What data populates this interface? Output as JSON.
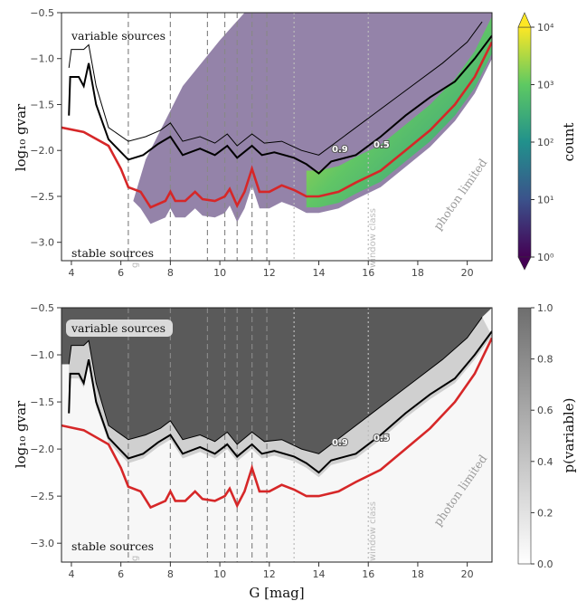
{
  "chart_data": [
    {
      "type": "heatmap",
      "panel": "top",
      "ylabel": "log₁₀ gvar",
      "xlim": [
        3.6,
        21.0
      ],
      "ylim": [
        -3.2,
        -0.5
      ],
      "xticks": [
        4,
        6,
        8,
        10,
        12,
        14,
        16,
        18,
        20
      ],
      "yticks": [
        -3.0,
        -2.5,
        -2.0,
        -1.5,
        -1.0,
        -0.5
      ],
      "colorbar": {
        "label": "count",
        "scale": "log",
        "ticks": [
          "10⁰",
          "10¹",
          "10²",
          "10³",
          "10⁴"
        ],
        "colormap": "viridis"
      },
      "annotations": {
        "variable": "variable sources",
        "stable": "stable sources",
        "photon": "photon limited",
        "window": "window class",
        "g": "g"
      },
      "contour_labels": [
        "0.9",
        "0.5"
      ]
    },
    {
      "type": "heatmap",
      "panel": "bottom",
      "xlabel": "G [mag]",
      "ylabel": "log₁₀ gvar",
      "xlim": [
        3.6,
        21.0
      ],
      "ylim": [
        -3.2,
        -0.5
      ],
      "xticks": [
        4,
        6,
        8,
        10,
        12,
        14,
        16,
        18,
        20
      ],
      "yticks": [
        -3.0,
        -2.5,
        -2.0,
        -1.5,
        -1.0,
        -0.5
      ],
      "colorbar": {
        "label": "p(variable)",
        "scale": "linear",
        "ticks": [
          "0.0",
          "0.2",
          "0.4",
          "0.6",
          "0.8",
          "1.0"
        ],
        "colormap": "greys"
      },
      "annotations": {
        "variable": "variable sources",
        "stable": "stable sources",
        "photon": "photon limited",
        "window": "window class",
        "g": "g"
      },
      "contour_labels": [
        "0.9",
        "0.5"
      ]
    }
  ],
  "vlines": {
    "dashed": [
      6.3,
      8.0,
      9.5,
      10.2,
      10.7,
      11.3,
      11.9
    ],
    "dotted": [
      13.0,
      16.0
    ]
  },
  "curves": {
    "threshold": [
      [
        3.6,
        -1.75
      ],
      [
        4.5,
        -1.8
      ],
      [
        5.5,
        -1.95
      ],
      [
        6.0,
        -2.2
      ],
      [
        6.3,
        -2.4
      ],
      [
        6.8,
        -2.45
      ],
      [
        7.2,
        -2.62
      ],
      [
        7.8,
        -2.55
      ],
      [
        8.0,
        -2.45
      ],
      [
        8.2,
        -2.55
      ],
      [
        8.6,
        -2.55
      ],
      [
        9.0,
        -2.45
      ],
      [
        9.3,
        -2.53
      ],
      [
        9.8,
        -2.55
      ],
      [
        10.2,
        -2.5
      ],
      [
        10.4,
        -2.42
      ],
      [
        10.7,
        -2.6
      ],
      [
        11.0,
        -2.45
      ],
      [
        11.3,
        -2.2
      ],
      [
        11.6,
        -2.45
      ],
      [
        12.0,
        -2.45
      ],
      [
        12.5,
        -2.38
      ],
      [
        13.0,
        -2.43
      ],
      [
        13.5,
        -2.5
      ],
      [
        14.0,
        -2.5
      ],
      [
        14.8,
        -2.45
      ],
      [
        15.5,
        -2.35
      ],
      [
        16.5,
        -2.22
      ],
      [
        17.5,
        -2.0
      ],
      [
        18.5,
        -1.78
      ],
      [
        19.5,
        -1.5
      ],
      [
        20.3,
        -1.2
      ],
      [
        21.0,
        -0.82
      ]
    ],
    "p05": [
      [
        3.9,
        -1.62
      ],
      [
        3.95,
        -1.2
      ],
      [
        4.3,
        -1.2
      ],
      [
        4.5,
        -1.3
      ],
      [
        4.7,
        -1.05
      ],
      [
        5.0,
        -1.5
      ],
      [
        5.5,
        -1.88
      ],
      [
        6.3,
        -2.1
      ],
      [
        6.9,
        -2.05
      ],
      [
        7.5,
        -1.93
      ],
      [
        8.0,
        -1.85
      ],
      [
        8.5,
        -2.05
      ],
      [
        9.2,
        -1.98
      ],
      [
        9.8,
        -2.05
      ],
      [
        10.3,
        -1.95
      ],
      [
        10.7,
        -2.08
      ],
      [
        11.3,
        -1.95
      ],
      [
        11.7,
        -2.05
      ],
      [
        12.2,
        -2.02
      ],
      [
        13.0,
        -2.08
      ],
      [
        13.5,
        -2.15
      ],
      [
        14.0,
        -2.25
      ],
      [
        14.5,
        -2.12
      ],
      [
        15.5,
        -2.05
      ],
      [
        16.5,
        -1.85
      ],
      [
        17.5,
        -1.62
      ],
      [
        18.5,
        -1.42
      ],
      [
        19.5,
        -1.25
      ],
      [
        20.3,
        -1.0
      ],
      [
        21.0,
        -0.75
      ]
    ],
    "p09": [
      [
        3.9,
        -1.1
      ],
      [
        4.0,
        -0.9
      ],
      [
        4.5,
        -0.9
      ],
      [
        4.7,
        -0.85
      ],
      [
        5.0,
        -1.3
      ],
      [
        5.5,
        -1.75
      ],
      [
        6.3,
        -1.9
      ],
      [
        7.0,
        -1.85
      ],
      [
        7.6,
        -1.78
      ],
      [
        8.0,
        -1.7
      ],
      [
        8.5,
        -1.9
      ],
      [
        9.2,
        -1.85
      ],
      [
        9.8,
        -1.92
      ],
      [
        10.3,
        -1.82
      ],
      [
        10.7,
        -1.95
      ],
      [
        11.3,
        -1.82
      ],
      [
        11.8,
        -1.92
      ],
      [
        12.5,
        -1.9
      ],
      [
        13.3,
        -2.0
      ],
      [
        14.0,
        -2.05
      ],
      [
        15.0,
        -1.85
      ],
      [
        16.0,
        -1.65
      ],
      [
        17.0,
        -1.45
      ],
      [
        18.0,
        -1.25
      ],
      [
        19.0,
        -1.05
      ],
      [
        20.0,
        -0.82
      ],
      [
        20.6,
        -0.6
      ]
    ]
  }
}
